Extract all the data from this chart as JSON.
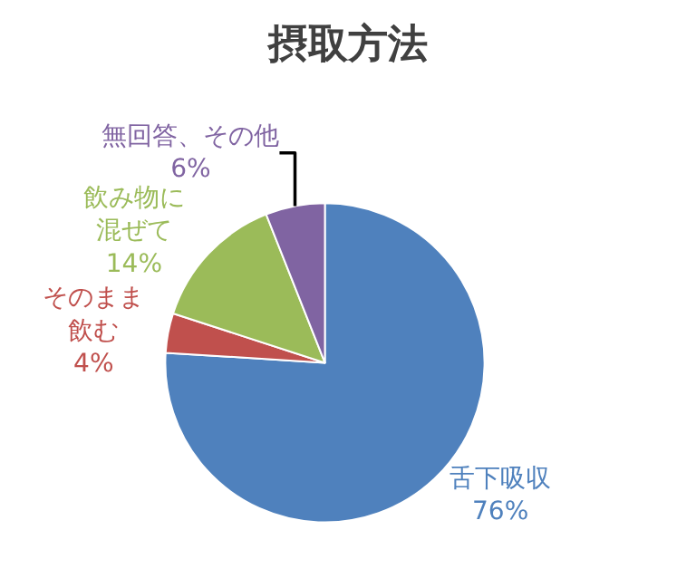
{
  "chart_data": {
    "type": "pie",
    "title": "摂取方法",
    "categories": [
      "舌下吸収",
      "そのまま飲む",
      "飲み物に混ぜて",
      "無回答、その他"
    ],
    "values": [
      76,
      4,
      14,
      6
    ],
    "value_labels": [
      "76%",
      "4%",
      "14%",
      "6%"
    ],
    "colors": [
      "#4f81bd",
      "#c0504d",
      "#9bbb59",
      "#8064a2"
    ],
    "legend": false
  }
}
